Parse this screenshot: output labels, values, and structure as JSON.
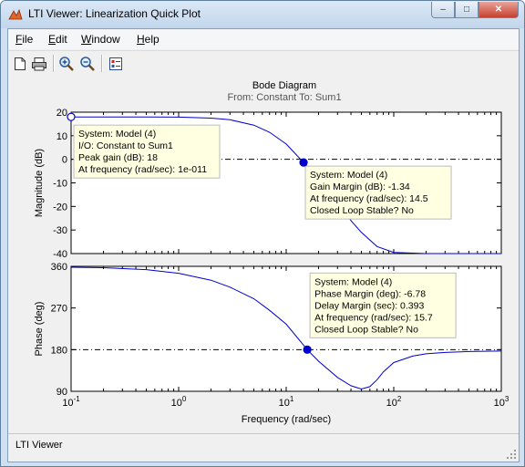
{
  "window": {
    "title": "LTI Viewer: Linearization Quick Plot",
    "controls": {
      "minimize": "–",
      "maximize": "□",
      "close": "✕"
    }
  },
  "menu": [
    "File",
    "Edit",
    "Window",
    "Help"
  ],
  "toolbar": {
    "icons": [
      "new-file-icon",
      "print-icon",
      "zoom-in-icon",
      "zoom-out-icon",
      "plot-config-icon"
    ]
  },
  "status": {
    "text": "LTI Viewer"
  },
  "chart_data": {
    "type": "line",
    "title": "Bode Diagram",
    "subtitle": "From: Constant  To: Sum1",
    "xlabel": "Frequency  (rad/sec)",
    "xscale": "log",
    "xlim": [
      0.1,
      1000
    ],
    "x_ticks": [
      {
        "base": "10",
        "exp": "-1"
      },
      {
        "base": "10",
        "exp": "0"
      },
      {
        "base": "10",
        "exp": "1"
      },
      {
        "base": "10",
        "exp": "2"
      },
      {
        "base": "10",
        "exp": "3"
      }
    ],
    "magnitude": {
      "ylabel": "Magnitude (dB)",
      "ylim": [
        -40,
        20
      ],
      "yticks": [
        "20",
        "10",
        "0",
        "-10",
        "-20",
        "-30",
        "-40"
      ],
      "reference_line": 0,
      "series": {
        "x": [
          0.1,
          0.5,
          1,
          2,
          3,
          5,
          7,
          10,
          14.5,
          20,
          30,
          40,
          50,
          70,
          100,
          200,
          500,
          1000
        ],
        "y": [
          18,
          18,
          17.9,
          17.5,
          16.8,
          14.5,
          11.5,
          6.5,
          -1.34,
          -8,
          -18,
          -26,
          -31,
          -37,
          -39.5,
          -40,
          -40,
          -40
        ]
      },
      "datatips": [
        {
          "x": 0.1,
          "y": 18,
          "marker": "open",
          "lines": [
            "System: Model (4)",
            "I/O: Constant to Sum1",
            "Peak gain (dB): 18",
            "At frequency (rad/sec): 1e-011"
          ]
        },
        {
          "x": 14.5,
          "y": -1.34,
          "marker": "filled",
          "lines": [
            "System: Model (4)",
            "Gain Margin (dB): -1.34",
            "At frequency (rad/sec): 14.5",
            "Closed Loop Stable? No"
          ]
        }
      ]
    },
    "phase": {
      "ylabel": "Phase (deg)",
      "ylim": [
        90,
        360
      ],
      "yticks": [
        "360",
        "270",
        "180",
        "90"
      ],
      "reference_line": 180,
      "series": {
        "x": [
          0.1,
          0.2,
          0.5,
          1,
          2,
          3,
          5,
          7,
          10,
          15.7,
          20,
          30,
          40,
          50,
          60,
          70,
          80,
          100,
          150,
          200,
          300,
          500,
          1000
        ],
        "y": [
          358,
          357,
          353,
          345,
          330,
          315,
          290,
          265,
          235,
          180,
          155,
          120,
          102,
          95,
          100,
          115,
          132,
          152,
          166,
          171,
          174,
          176,
          177
        ]
      },
      "datatips": [
        {
          "x": 15.7,
          "y": 180,
          "marker": "filled",
          "lines": [
            "System: Model (4)",
            "Phase Margin (deg): -6.78",
            "Delay Margin (sec): 0.393",
            "At frequency (rad/sec): 15.7",
            "Closed Loop Stable? No"
          ]
        }
      ]
    }
  }
}
